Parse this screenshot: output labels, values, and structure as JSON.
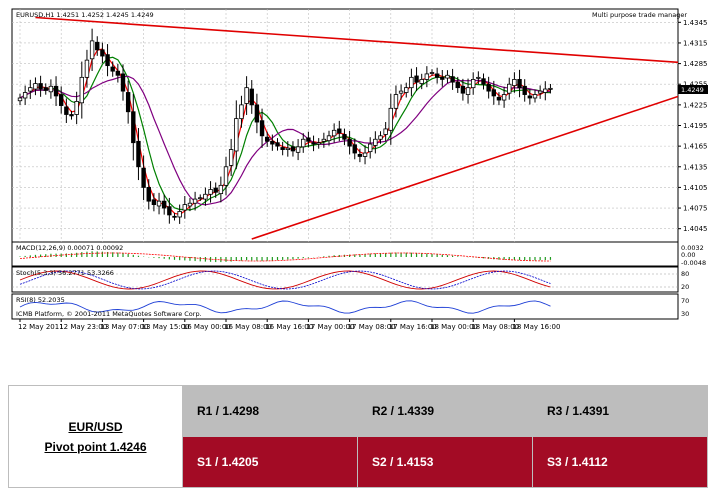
{
  "chart_data": {
    "type": "candlestick",
    "symbol_header": "EURUSD,H1  1.4251 1.4252 1.4245 1.4249",
    "expert_label": "Multi purpose trade manager",
    "current_price_label": "1.4249",
    "copyright": "ICMB Platform, © 2001-2011 MetaQuotes Software Corp.",
    "ylim": [
      1.403,
      1.436
    ],
    "y_ticks": [
      "1.4345",
      "1.4315",
      "1.4285",
      "1.4255",
      "1.4225",
      "1.4195",
      "1.4165",
      "1.4135",
      "1.4105",
      "1.4075",
      "1.4045"
    ],
    "y_tick_values": [
      1.4345,
      1.4315,
      1.4285,
      1.4255,
      1.4225,
      1.4195,
      1.4165,
      1.4135,
      1.4105,
      1.4075,
      1.4045
    ],
    "x_ticks": [
      "12 May 2011",
      "12 May 23:00",
      "13 May 07:00",
      "13 May 15:00",
      "16 May 00:00",
      "16 May 08:00",
      "16 May 16:00",
      "17 May 00:00",
      "17 May 08:00",
      "17 May 16:00",
      "18 May 00:00",
      "18 May 08:00",
      "18 May 16:00"
    ],
    "x_tick_bars": [
      0,
      8,
      16,
      24,
      32,
      40,
      48,
      56,
      64,
      72,
      80,
      88,
      96
    ],
    "bar_count": 104,
    "close": [
      1.4235,
      1.4243,
      1.425,
      1.4256,
      1.4248,
      1.4246,
      1.4252,
      1.4238,
      1.4224,
      1.4211,
      1.4209,
      1.423,
      1.4265,
      1.429,
      1.4318,
      1.4305,
      1.4296,
      1.4282,
      1.4274,
      1.4268,
      1.4245,
      1.4215,
      1.417,
      1.4135,
      1.4105,
      1.4085,
      1.408,
      1.4085,
      1.4075,
      1.4065,
      1.4062,
      1.407,
      1.408,
      1.4082,
      1.4088,
      1.409,
      1.4095,
      1.4102,
      1.4098,
      1.4108,
      1.4135,
      1.416,
      1.4205,
      1.4225,
      1.425,
      1.4225,
      1.42,
      1.418,
      1.4172,
      1.4168,
      1.4165,
      1.416,
      1.4162,
      1.4158,
      1.4164,
      1.4175,
      1.4172,
      1.4168,
      1.417,
      1.4175,
      1.418,
      1.4188,
      1.4184,
      1.4175,
      1.4165,
      1.4155,
      1.415,
      1.4155,
      1.4168,
      1.4175,
      1.418,
      1.419,
      1.422,
      1.424,
      1.4245,
      1.425,
      1.4265,
      1.4258,
      1.4262,
      1.427,
      1.4272,
      1.4265,
      1.4262,
      1.4268,
      1.4258,
      1.425,
      1.4242,
      1.425,
      1.4262,
      1.4265,
      1.4255,
      1.4245,
      1.4238,
      1.4232,
      1.424,
      1.4255,
      1.4262,
      1.425,
      1.424,
      1.4235,
      1.424,
      1.4245,
      1.4248,
      1.4249
    ],
    "moving_averages": [
      {
        "color": "#ff0000",
        "period_hint": "fast"
      },
      {
        "color": "#008000",
        "period_hint": "medium"
      },
      {
        "color": "#800080",
        "period_hint": "slow"
      }
    ],
    "trendlines": [
      {
        "color": "#e00000",
        "from_bar": 3,
        "from_price": 1.4352,
        "to_bar": 160,
        "to_price": 1.427
      },
      {
        "color": "#e00000",
        "from_bar": 45,
        "from_price": 1.403,
        "to_bar": 160,
        "to_price": 1.4318
      }
    ],
    "subpanels": [
      {
        "label": "MACD(12,26,9) 0.00071 0.00092",
        "scale": [
          "0.0032",
          "0.00",
          "-0.0048"
        ]
      },
      {
        "label": "Stoch(5,3,3) 56.2771 53.3266",
        "scale": [
          "80",
          "20"
        ]
      },
      {
        "label": "RSI(8) 52.2035",
        "scale": [
          "70",
          "30"
        ]
      }
    ],
    "colors": {
      "up_candle": "#ffffff",
      "down_candle": "#000000",
      "grid": "#bfbfbf",
      "trendline": "#e00000"
    }
  },
  "pivot_table": {
    "title_line1": "EUR/USD",
    "title_line2": "Pivot point 1.4246",
    "resistance": [
      "R1 / 1.4298",
      "R2 / 1.4339",
      "R3 / 1.4391"
    ],
    "support": [
      "S1 / 1.4205",
      "S2 / 1.4153",
      "S3 / 1.4112"
    ],
    "colors": {
      "resistance_bg": "#bdbdbd",
      "support_bg": "#a30b25"
    }
  }
}
